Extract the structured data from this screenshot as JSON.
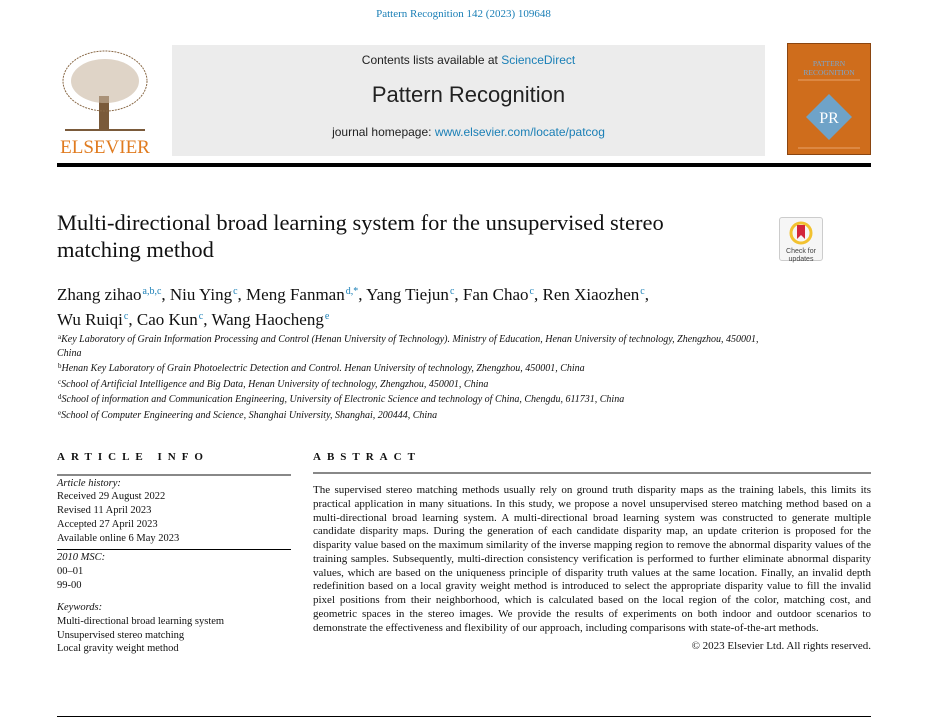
{
  "citation": "Pattern Recognition 142 (2023) 109648",
  "header": {
    "publisher_logo": "ELSEVIER",
    "contents_prefix": "Contents lists available at ",
    "contents_link": "ScienceDirect",
    "journal_title": "Pattern Recognition",
    "homepage_prefix": "journal homepage: ",
    "homepage_link": "www.elsevier.com/locate/patcog",
    "cover_title": "PATTERN RECOGNITION",
    "cover_color": "#cf6d1c",
    "accent_color": "#1a7fb6"
  },
  "title": "Multi-directional broad learning system for the unsupervised stereo matching method",
  "check_updates": {
    "line1": "Check for",
    "line2": "updates"
  },
  "authors": [
    {
      "name": "Zhang zihao",
      "sup": "a,b,c"
    },
    {
      "name": "Niu Ying",
      "sup": "c"
    },
    {
      "name": "Meng Fanman",
      "sup": "d,*"
    },
    {
      "name": "Yang Tiejun",
      "sup": "c"
    },
    {
      "name": "Fan Chao",
      "sup": "c"
    },
    {
      "name": "Ren Xiaozhen",
      "sup": "c"
    },
    {
      "name": "Wu Ruiqi",
      "sup": "c"
    },
    {
      "name": "Cao Kun",
      "sup": "c"
    },
    {
      "name": "Wang Haocheng",
      "sup": "e"
    }
  ],
  "affiliations": [
    {
      "key": "a",
      "text": "Key Laboratory of Grain Information Processing and Control (Henan University of Technology). Ministry of Education, Henan University of technology, Zhengzhou, 450001, China"
    },
    {
      "key": "b",
      "text": "Henan Key Laboratory of Grain Photoelectric Detection and Control. Henan University of technology, Zhengzhou, 450001, China"
    },
    {
      "key": "c",
      "text": "School of Artificial Intelligence and Big Data, Henan University of technology, Zhengzhou, 450001, China"
    },
    {
      "key": "d",
      "text": "School of information and Communication Engineering, University of Electronic Science and technology of China, Chengdu, 611731, China"
    },
    {
      "key": "e",
      "text": "School of Computer Engineering and Science, Shanghai University, Shanghai, 200444, China"
    }
  ],
  "article_info": {
    "heading": "ARTICLE INFO",
    "history_label": "Article history:",
    "history": [
      "Received 29 August 2022",
      "Revised 11 April 2023",
      "Accepted 27 April 2023",
      "Available online 6 May 2023"
    ],
    "msc_label": "2010 MSC:",
    "msc": [
      "00–01",
      "99-00"
    ],
    "keywords_label": "Keywords:",
    "keywords": [
      "Multi-directional broad learning system",
      "Unsupervised stereo matching",
      "Local gravity weight method"
    ]
  },
  "abstract": {
    "heading": "ABSTRACT",
    "text": "The supervised stereo matching methods usually rely on ground truth disparity maps as the training labels, this limits its practical application in many situations. In this study, we propose a novel unsupervised stereo matching method based on a multi-directional broad learning system. A multi-directional broad learning system was constructed to generate multiple candidate disparity maps. During the generation of each candidate disparity map, an update criterion is proposed for the disparity value based on the maximum similarity of the inverse mapping region to remove the abnormal disparity values of the training samples. Subsequently, multi-direction consistency verification is performed to further eliminate abnormal disparity values, which are based on the uniqueness principle of disparity truth values at the same location. Finally, an invalid depth redefinition based on a local gravity weight method is introduced to select the appropriate disparity value to fill the invalid pixel positions from their neighborhood, which is calculated based on the local region of the color, matching cost, and geometric spaces in the stereo images. We provide the results of experiments on both indoor and outdoor scenarios to demonstrate the effectiveness and flexibility of our approach, including comparisons with state-of-the-art methods.",
    "copyright": "© 2023 Elsevier Ltd. All rights reserved."
  }
}
